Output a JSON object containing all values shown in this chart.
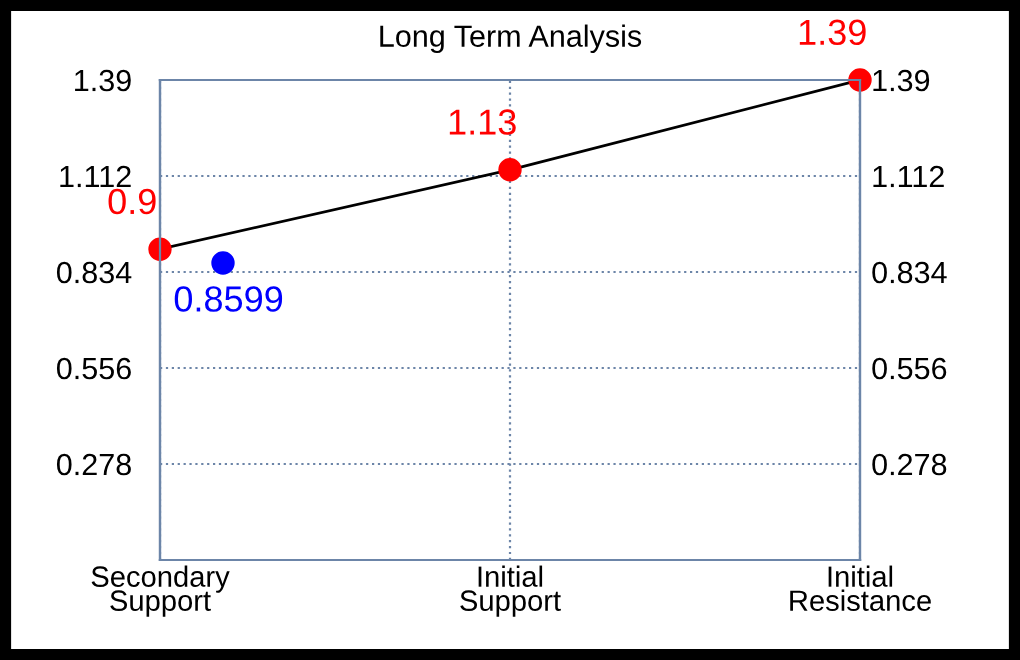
{
  "chart_data": {
    "type": "line",
    "title": "Long Term Analysis",
    "categories": [
      "Secondary\nSupport",
      "Initial\nSupport",
      "Initial\nResistance"
    ],
    "ylim": [
      0,
      1.39
    ],
    "yticks": [
      0.278,
      0.556,
      0.834,
      1.112,
      1.39
    ],
    "y2lim": [
      0,
      1.39
    ],
    "y2ticks": [
      0.278,
      0.556,
      0.834,
      1.112,
      1.39
    ],
    "grid": true,
    "marker": "circle",
    "data_labels": true,
    "series": [
      {
        "values": [
          0.9,
          1.13,
          1.39
        ],
        "color": "#000000",
        "colors": [
          "#ff0000",
          "#ff0000",
          "#ff0000"
        ]
      },
      {
        "type": "scatter",
        "values": [
          0.8599,
          null,
          null
        ],
        "color": "#0000ff"
      }
    ]
  }
}
